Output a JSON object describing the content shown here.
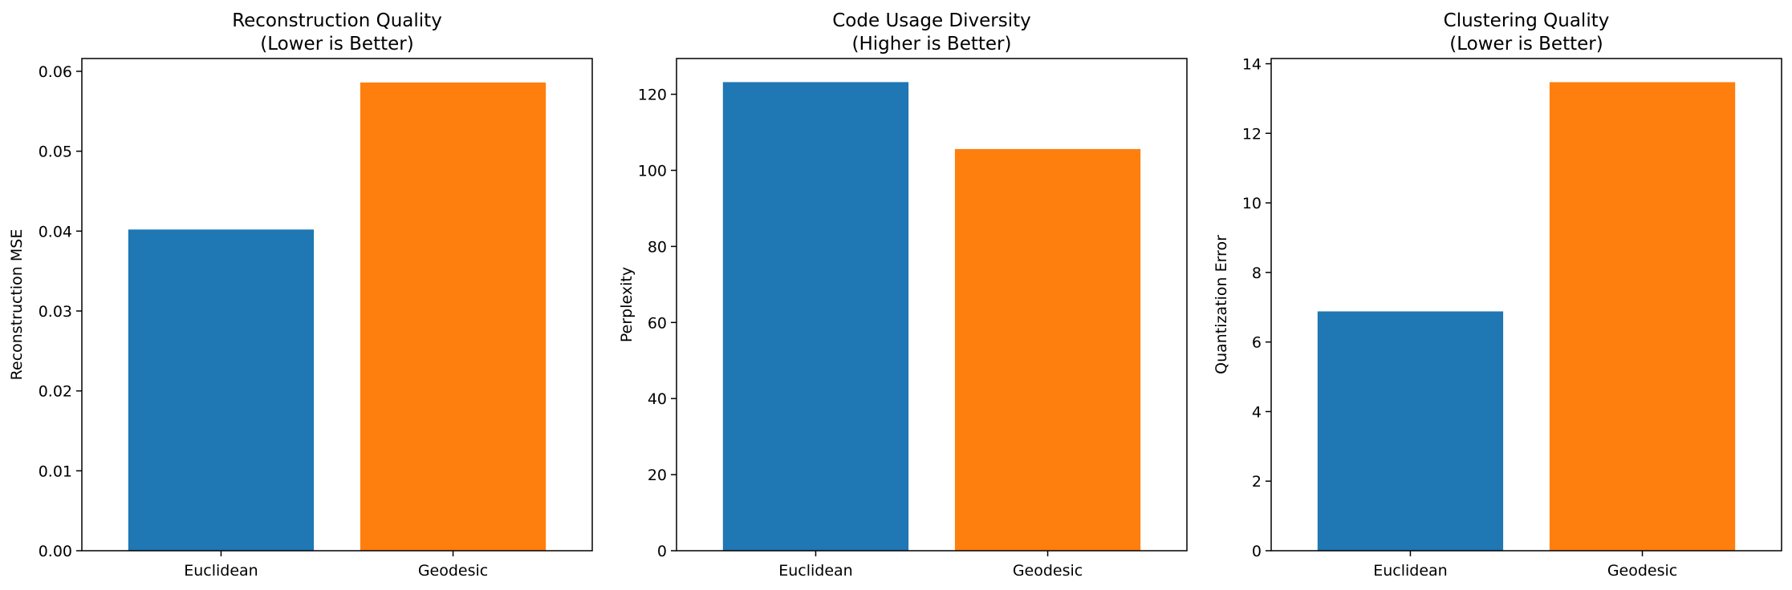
{
  "chart_data": [
    {
      "type": "bar",
      "title_lines": [
        "Reconstruction Quality",
        "(Lower is Better)"
      ],
      "ylabel": "Reconstruction MSE",
      "categories": [
        "Euclidean",
        "Geodesic"
      ],
      "values": [
        0.0402,
        0.0586
      ],
      "ylim": [
        0,
        0.0616
      ],
      "yticks": [
        0,
        0.01,
        0.02,
        0.03,
        0.04,
        0.05,
        0.06
      ],
      "ytick_labels": [
        "0.00",
        "0.01",
        "0.02",
        "0.03",
        "0.04",
        "0.05",
        "0.06"
      ],
      "colors": [
        "#1f77b4",
        "#ff7f0e"
      ],
      "grid": false
    },
    {
      "type": "bar",
      "title_lines": [
        "Code Usage Diversity",
        "(Higher is Better)"
      ],
      "ylabel": "Perplexity",
      "categories": [
        "Euclidean",
        "Geodesic"
      ],
      "values": [
        123.2,
        105.6
      ],
      "ylim": [
        0,
        129.4
      ],
      "yticks": [
        0,
        20,
        40,
        60,
        80,
        100,
        120
      ],
      "ytick_labels": [
        "0",
        "20",
        "40",
        "60",
        "80",
        "100",
        "120"
      ],
      "colors": [
        "#1f77b4",
        "#ff7f0e"
      ],
      "grid": false
    },
    {
      "type": "bar",
      "title_lines": [
        "Clustering Quality",
        "(Lower is Better)"
      ],
      "ylabel": "Quantization Error",
      "categories": [
        "Euclidean",
        "Geodesic"
      ],
      "values": [
        6.88,
        13.47
      ],
      "ylim": [
        0,
        14.15
      ],
      "yticks": [
        0,
        2,
        4,
        6,
        8,
        10,
        12,
        14
      ],
      "ytick_labels": [
        "0",
        "2",
        "4",
        "6",
        "8",
        "10",
        "12",
        "14"
      ],
      "colors": [
        "#1f77b4",
        "#ff7f0e"
      ],
      "grid": false
    }
  ]
}
